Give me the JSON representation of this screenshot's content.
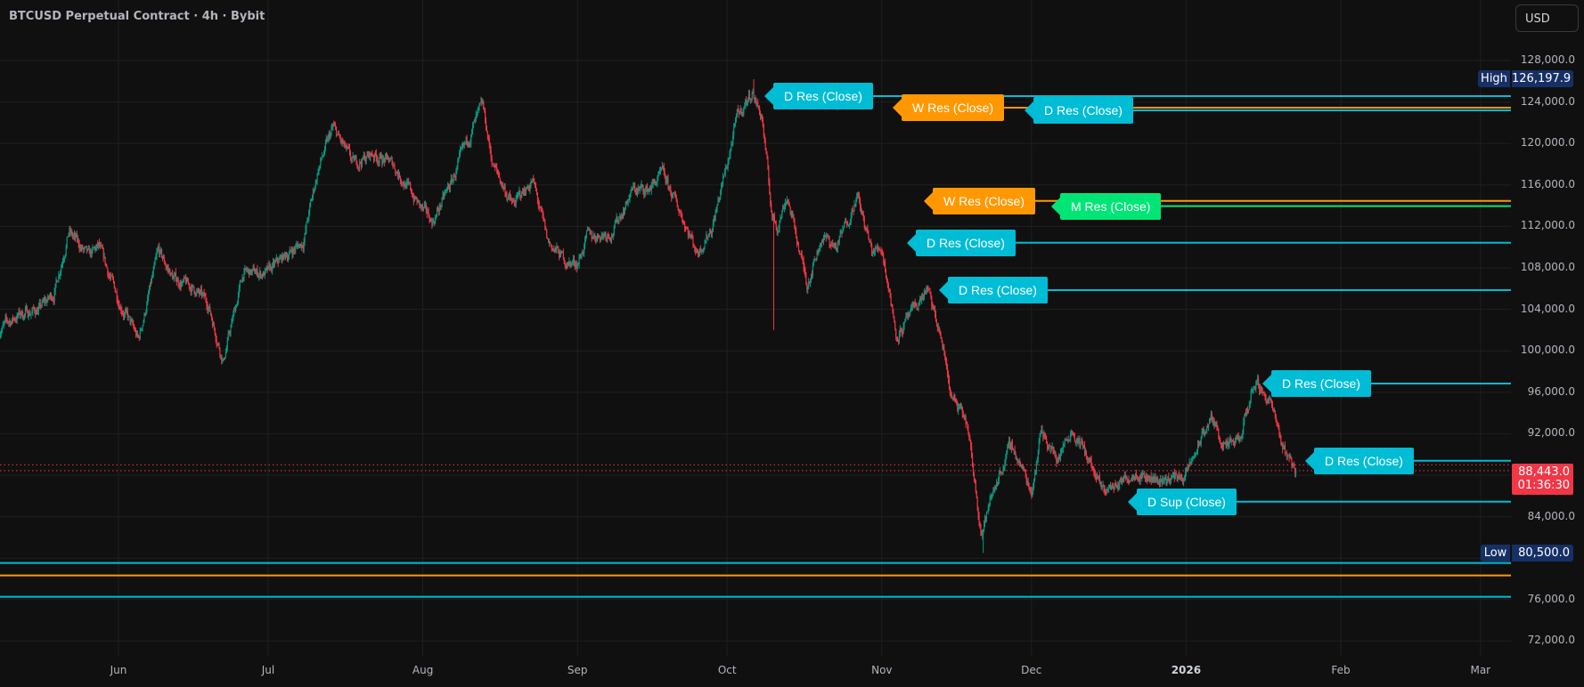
{
  "header": {
    "title": "BTCUSD Perpetual Contract · 4h · Bybit",
    "currency_button": "USD"
  },
  "colors": {
    "background": "#101010",
    "grid": "#1f1f1f",
    "up": "#089981",
    "down": "#f23645",
    "cyan": "#00bcd4",
    "orange": "#ff9800",
    "green": "#00e676",
    "price_tag": "#f23645",
    "hilo_tag": "#163066"
  },
  "price_axis": {
    "ticks": [
      "128,000.0",
      "124,000.0",
      "120,000.0",
      "116,000.0",
      "112,000.0",
      "108,000.0",
      "104,000.0",
      "100,000.0",
      "96,000.0",
      "92,000.0",
      "84,000.0",
      "76,000.0",
      "72,000.0"
    ],
    "tick_values": [
      128000,
      124000,
      120000,
      116000,
      112000,
      108000,
      104000,
      100000,
      96000,
      92000,
      84000,
      76000,
      72000
    ]
  },
  "time_axis": {
    "labels": [
      {
        "text": "Jun",
        "date": "2025-06-01"
      },
      {
        "text": "Jul",
        "date": "2025-07-01"
      },
      {
        "text": "Aug",
        "date": "2025-08-01"
      },
      {
        "text": "Sep",
        "date": "2025-09-01"
      },
      {
        "text": "Oct",
        "date": "2025-10-01"
      },
      {
        "text": "Nov",
        "date": "2025-11-01"
      },
      {
        "text": "Dec",
        "date": "2025-12-01"
      },
      {
        "text": "2026",
        "date": "2026-01-01"
      },
      {
        "text": "Feb",
        "date": "2026-02-01"
      },
      {
        "text": "Mar",
        "date": "2026-03-01"
      }
    ]
  },
  "markers": {
    "high": {
      "label": "High",
      "value": "126,197.9",
      "price": 126197.9
    },
    "low": {
      "label": "Low",
      "value": "80,500.0",
      "price": 80500
    },
    "last": {
      "value": "88,443.0",
      "countdown": "01:36:30",
      "price": 88443
    }
  },
  "levels": [
    {
      "label": "D Res (Close)",
      "price": 124570,
      "color": "#00bcd4"
    },
    {
      "label": "D Res (Close)",
      "price": 123190,
      "color": "#00bcd4"
    },
    {
      "label": "W Res (Close)",
      "price": 123450,
      "color": "#ff9800"
    },
    {
      "label": "W Res (Close)",
      "price": 114460,
      "color": "#ff9800"
    },
    {
      "label": "M Res (Close)",
      "price": 113950,
      "color": "#00e676"
    },
    {
      "label": "D Res (Close)",
      "price": 110430,
      "color": "#00bcd4"
    },
    {
      "label": "D Res (Close)",
      "price": 105850,
      "color": "#00bcd4"
    },
    {
      "label": "D Res (Close)",
      "price": 96840,
      "color": "#00bcd4"
    },
    {
      "label": "D Res (Close)",
      "price": 89400,
      "color": "#00bcd4"
    },
    {
      "label": "D Sup (Close)",
      "price": 85450,
      "color": "#00bcd4"
    },
    {
      "label": "",
      "price": 79530,
      "color": "#00bcd4"
    },
    {
      "label": "",
      "price": 78330,
      "color": "#ff9800"
    },
    {
      "label": "",
      "price": 76270,
      "color": "#00bcd4"
    }
  ],
  "chart_data": {
    "type": "candlestick",
    "interval": "4h",
    "approx_closes": [
      [
        "2025-05-08",
        102000
      ],
      [
        "2025-05-12",
        103500
      ],
      [
        "2025-05-16",
        104000
      ],
      [
        "2025-05-19",
        105500
      ],
      [
        "2025-05-22",
        111500
      ],
      [
        "2025-05-26",
        109000
      ],
      [
        "2025-05-28",
        110000
      ],
      [
        "2025-06-01",
        105000
      ],
      [
        "2025-06-05",
        101000
      ],
      [
        "2025-06-09",
        109500
      ],
      [
        "2025-06-12",
        107000
      ],
      [
        "2025-06-16",
        106000
      ],
      [
        "2025-06-19",
        104500
      ],
      [
        "2025-06-22",
        99000
      ],
      [
        "2025-06-26",
        107500
      ],
      [
        "2025-07-01",
        107500
      ],
      [
        "2025-07-04",
        109000
      ],
      [
        "2025-07-08",
        110500
      ],
      [
        "2025-07-11",
        117500
      ],
      [
        "2025-07-14",
        121500
      ],
      [
        "2025-07-18",
        118000
      ],
      [
        "2025-07-22",
        119000
      ],
      [
        "2025-07-26",
        118000
      ],
      [
        "2025-08-01",
        113500
      ],
      [
        "2025-08-03",
        112500
      ],
      [
        "2025-08-07",
        116500
      ],
      [
        "2025-08-11",
        121500
      ],
      [
        "2025-08-13",
        123500
      ],
      [
        "2025-08-15",
        118000
      ],
      [
        "2025-08-19",
        114000
      ],
      [
        "2025-08-23",
        116500
      ],
      [
        "2025-08-26",
        110500
      ],
      [
        "2025-08-30",
        108500
      ],
      [
        "2025-09-01",
        108500
      ],
      [
        "2025-09-03",
        111000
      ],
      [
        "2025-09-08",
        111500
      ],
      [
        "2025-09-12",
        115500
      ],
      [
        "2025-09-15",
        115500
      ],
      [
        "2025-09-18",
        117000
      ],
      [
        "2025-09-22",
        113000
      ],
      [
        "2025-09-25",
        109500
      ],
      [
        "2025-09-28",
        112000
      ],
      [
        "2025-10-01",
        118000
      ],
      [
        "2025-10-03",
        122500
      ],
      [
        "2025-10-06",
        125000
      ],
      [
        "2025-10-08",
        122500
      ],
      [
        "2025-10-10",
        113000
      ],
      [
        "2025-10-11",
        112000
      ],
      [
        "2025-10-13",
        115000
      ],
      [
        "2025-10-17",
        106500
      ],
      [
        "2025-10-20",
        111000
      ],
      [
        "2025-10-23",
        110000
      ],
      [
        "2025-10-27",
        115000
      ],
      [
        "2025-10-30",
        109500
      ],
      [
        "2025-11-01",
        110000
      ],
      [
        "2025-11-04",
        101500
      ],
      [
        "2025-11-07",
        103500
      ],
      [
        "2025-11-10",
        106000
      ],
      [
        "2025-11-13",
        101000
      ],
      [
        "2025-11-15",
        95500
      ],
      [
        "2025-11-18",
        93000
      ],
      [
        "2025-11-21",
        82500
      ],
      [
        "2025-11-24",
        87500
      ],
      [
        "2025-11-27",
        91000
      ],
      [
        "2025-12-01",
        86500
      ],
      [
        "2025-12-03",
        92500
      ],
      [
        "2025-12-06",
        89500
      ],
      [
        "2025-12-09",
        92500
      ],
      [
        "2025-12-12",
        90000
      ],
      [
        "2025-12-15",
        86500
      ],
      [
        "2025-12-18",
        87000
      ],
      [
        "2025-12-22",
        88500
      ],
      [
        "2025-12-26",
        87500
      ],
      [
        "2026-01-01",
        88000
      ],
      [
        "2026-01-04",
        91500
      ],
      [
        "2026-01-06",
        93500
      ],
      [
        "2026-01-09",
        90500
      ],
      [
        "2026-01-12",
        91500
      ],
      [
        "2026-01-14",
        96000
      ],
      [
        "2026-01-15",
        97000
      ],
      [
        "2026-01-18",
        95000
      ],
      [
        "2026-01-20",
        91000
      ],
      [
        "2026-01-22",
        89500
      ],
      [
        "2026-01-23",
        88443
      ]
    ],
    "extreme_wicks": [
      [
        "2025-10-06",
        126197.9
      ],
      [
        "2025-10-10",
        102000
      ],
      [
        "2025-11-21",
        80500
      ]
    ]
  }
}
